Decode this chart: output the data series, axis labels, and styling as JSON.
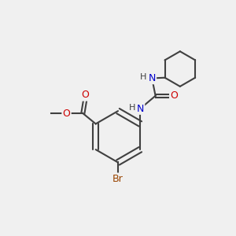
{
  "background_color": "#f0f0f0",
  "figure_size": [
    3.0,
    3.0
  ],
  "dpi": 100,
  "atom_colors": {
    "C": "#404040",
    "H": "#404040",
    "N": "#0000cc",
    "O": "#cc0000",
    "Br": "#994400"
  },
  "bond_color": "#404040",
  "bond_lw": 1.5,
  "font_size": 9,
  "font_size_small": 8
}
